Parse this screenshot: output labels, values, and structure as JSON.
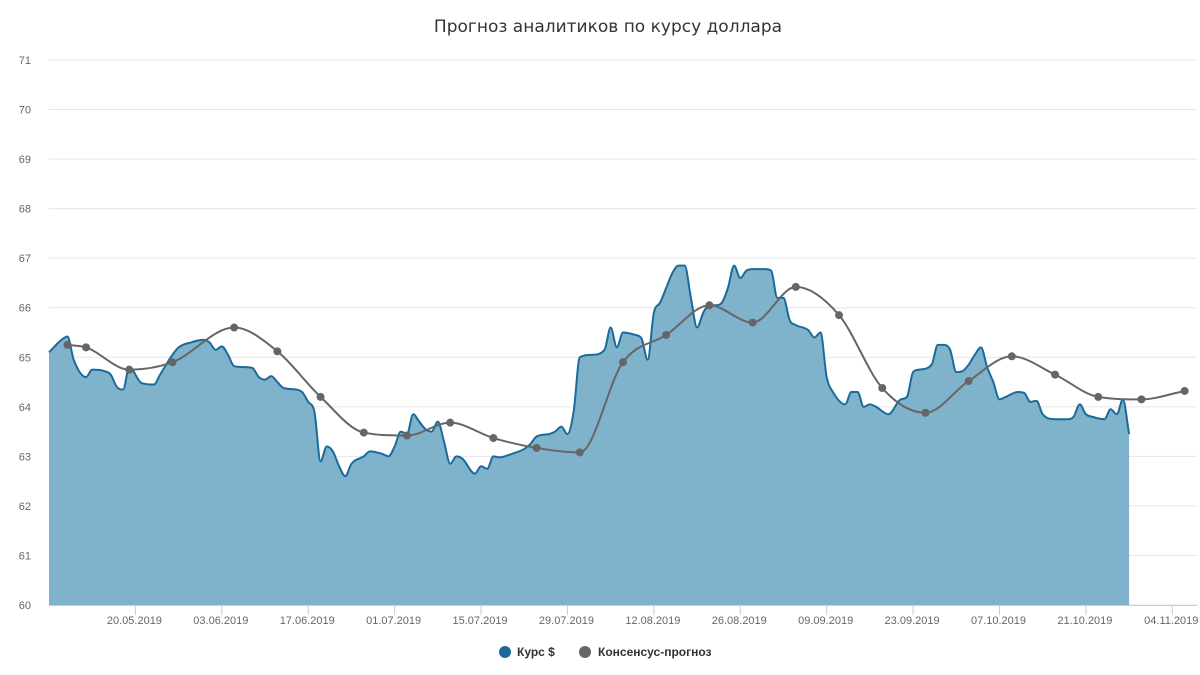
{
  "chart_data": {
    "type": "area",
    "title": "Прогноз аналитиков по курсу доллара",
    "xlabel": "",
    "ylabel": "",
    "ylim": [
      60,
      71
    ],
    "yticks": [
      60,
      61,
      62,
      63,
      64,
      65,
      66,
      67,
      68,
      69,
      70,
      71
    ],
    "xlim": [
      "2019-05-06",
      "2019-11-08"
    ],
    "xticks": [
      "20.05.2019",
      "03.06.2019",
      "17.06.2019",
      "01.07.2019",
      "15.07.2019",
      "29.07.2019",
      "12.08.2019",
      "26.08.2019",
      "09.09.2019",
      "23.09.2019",
      "07.10.2019",
      "21.10.2019",
      "04.11.2019"
    ],
    "grid": true,
    "legend_position": "bottom-center",
    "series": [
      {
        "name": "Курс $",
        "type": "area",
        "color": "#1a6b9a",
        "fill": "#7fb2cb",
        "points": [
          [
            "2019-05-06",
            65.1
          ],
          [
            "2019-05-08",
            65.35
          ],
          [
            "2019-05-09",
            65.42
          ],
          [
            "2019-05-10",
            64.95
          ],
          [
            "2019-05-12",
            64.6
          ],
          [
            "2019-05-13",
            64.75
          ],
          [
            "2019-05-15",
            64.72
          ],
          [
            "2019-05-16",
            64.65
          ],
          [
            "2019-05-17",
            64.4
          ],
          [
            "2019-05-18",
            64.35
          ],
          [
            "2019-05-19",
            64.8
          ],
          [
            "2019-05-21",
            64.48
          ],
          [
            "2019-05-23",
            64.45
          ],
          [
            "2019-05-24",
            64.65
          ],
          [
            "2019-05-26",
            65.05
          ],
          [
            "2019-05-27",
            65.2
          ],
          [
            "2019-05-29",
            65.3
          ],
          [
            "2019-05-31",
            65.35
          ],
          [
            "2019-06-01",
            65.3
          ],
          [
            "2019-06-02",
            65.15
          ],
          [
            "2019-06-03",
            65.22
          ],
          [
            "2019-06-04",
            65.05
          ],
          [
            "2019-06-05",
            64.82
          ],
          [
            "2019-06-07",
            64.8
          ],
          [
            "2019-06-08",
            64.78
          ],
          [
            "2019-06-09",
            64.6
          ],
          [
            "2019-06-10",
            64.55
          ],
          [
            "2019-06-11",
            64.62
          ],
          [
            "2019-06-12",
            64.5
          ],
          [
            "2019-06-13",
            64.38
          ],
          [
            "2019-06-15",
            64.35
          ],
          [
            "2019-06-16",
            64.3
          ],
          [
            "2019-06-17",
            64.1
          ],
          [
            "2019-06-18",
            63.9
          ],
          [
            "2019-06-19",
            62.9
          ],
          [
            "2019-06-20",
            63.2
          ],
          [
            "2019-06-21",
            63.1
          ],
          [
            "2019-06-22",
            62.8
          ],
          [
            "2019-06-23",
            62.6
          ],
          [
            "2019-06-24",
            62.85
          ],
          [
            "2019-06-26",
            63.0
          ],
          [
            "2019-06-27",
            63.1
          ],
          [
            "2019-06-29",
            63.05
          ],
          [
            "2019-06-30",
            63.0
          ],
          [
            "2019-07-01",
            63.2
          ],
          [
            "2019-07-02",
            63.5
          ],
          [
            "2019-07-03",
            63.45
          ],
          [
            "2019-07-04",
            63.85
          ],
          [
            "2019-07-05",
            63.7
          ],
          [
            "2019-07-06",
            63.55
          ],
          [
            "2019-07-07",
            63.5
          ],
          [
            "2019-07-08",
            63.7
          ],
          [
            "2019-07-09",
            63.3
          ],
          [
            "2019-07-10",
            62.85
          ],
          [
            "2019-07-11",
            63.0
          ],
          [
            "2019-07-12",
            62.95
          ],
          [
            "2019-07-14",
            62.65
          ],
          [
            "2019-07-15",
            62.8
          ],
          [
            "2019-07-16",
            62.75
          ],
          [
            "2019-07-17",
            63.0
          ],
          [
            "2019-07-18",
            62.98
          ],
          [
            "2019-07-20",
            63.05
          ],
          [
            "2019-07-22",
            63.15
          ],
          [
            "2019-07-23",
            63.25
          ],
          [
            "2019-07-24",
            63.4
          ],
          [
            "2019-07-26",
            63.45
          ],
          [
            "2019-07-27",
            63.5
          ],
          [
            "2019-07-28",
            63.6
          ],
          [
            "2019-07-29",
            63.45
          ],
          [
            "2019-07-30",
            63.9
          ],
          [
            "2019-07-31",
            65.0
          ],
          [
            "2019-08-02",
            65.05
          ],
          [
            "2019-08-04",
            65.15
          ],
          [
            "2019-08-05",
            65.6
          ],
          [
            "2019-08-06",
            65.2
          ],
          [
            "2019-08-07",
            65.5
          ],
          [
            "2019-08-09",
            65.45
          ],
          [
            "2019-08-10",
            65.38
          ],
          [
            "2019-08-11",
            64.95
          ],
          [
            "2019-08-12",
            65.9
          ],
          [
            "2019-08-13",
            66.1
          ],
          [
            "2019-08-14",
            66.4
          ],
          [
            "2019-08-15",
            66.7
          ],
          [
            "2019-08-16",
            66.85
          ],
          [
            "2019-08-17",
            66.85
          ],
          [
            "2019-08-18",
            66.2
          ],
          [
            "2019-08-19",
            65.6
          ],
          [
            "2019-08-20",
            65.9
          ],
          [
            "2019-08-21",
            66.05
          ],
          [
            "2019-08-22",
            66.05
          ],
          [
            "2019-08-23",
            66.1
          ],
          [
            "2019-08-24",
            66.4
          ],
          [
            "2019-08-25",
            66.85
          ],
          [
            "2019-08-26",
            66.6
          ],
          [
            "2019-08-27",
            66.75
          ],
          [
            "2019-08-28",
            66.78
          ],
          [
            "2019-08-30",
            66.78
          ],
          [
            "2019-08-31",
            66.75
          ],
          [
            "2019-09-01",
            66.2
          ],
          [
            "2019-09-02",
            66.2
          ],
          [
            "2019-09-03",
            65.75
          ],
          [
            "2019-09-04",
            65.65
          ],
          [
            "2019-09-06",
            65.55
          ],
          [
            "2019-09-07",
            65.4
          ],
          [
            "2019-09-08",
            65.5
          ],
          [
            "2019-09-09",
            64.6
          ],
          [
            "2019-09-10",
            64.3
          ],
          [
            "2019-09-12",
            64.05
          ],
          [
            "2019-09-13",
            64.3
          ],
          [
            "2019-09-14",
            64.3
          ],
          [
            "2019-09-15",
            64.0
          ],
          [
            "2019-09-16",
            64.05
          ],
          [
            "2019-09-17",
            64.0
          ],
          [
            "2019-09-19",
            63.85
          ],
          [
            "2019-09-21",
            64.15
          ],
          [
            "2019-09-22",
            64.2
          ],
          [
            "2019-09-23",
            64.7
          ],
          [
            "2019-09-24",
            64.75
          ],
          [
            "2019-09-26",
            64.85
          ],
          [
            "2019-09-27",
            65.25
          ],
          [
            "2019-09-28",
            65.25
          ],
          [
            "2019-09-29",
            65.15
          ],
          [
            "2019-09-30",
            64.7
          ],
          [
            "2019-10-01",
            64.72
          ],
          [
            "2019-10-02",
            64.85
          ],
          [
            "2019-10-03",
            65.05
          ],
          [
            "2019-10-04",
            65.2
          ],
          [
            "2019-10-05",
            64.8
          ],
          [
            "2019-10-06",
            64.5
          ],
          [
            "2019-10-07",
            64.15
          ],
          [
            "2019-10-08",
            64.2
          ],
          [
            "2019-10-10",
            64.3
          ],
          [
            "2019-10-11",
            64.28
          ],
          [
            "2019-10-12",
            64.1
          ],
          [
            "2019-10-13",
            64.12
          ],
          [
            "2019-10-14",
            63.85
          ],
          [
            "2019-10-16",
            63.75
          ],
          [
            "2019-10-18",
            63.75
          ],
          [
            "2019-10-19",
            63.8
          ],
          [
            "2019-10-20",
            64.05
          ],
          [
            "2019-10-21",
            63.85
          ],
          [
            "2019-10-22",
            63.8
          ],
          [
            "2019-10-24",
            63.75
          ],
          [
            "2019-10-25",
            63.95
          ],
          [
            "2019-10-26",
            63.85
          ],
          [
            "2019-10-27",
            64.15
          ],
          [
            "2019-10-28",
            63.45
          ]
        ]
      },
      {
        "name": "Консенсус-прогноз",
        "type": "line",
        "color": "#666666",
        "points": [
          [
            "2019-05-09",
            65.25
          ],
          [
            "2019-05-12",
            65.2
          ],
          [
            "2019-05-19",
            64.75
          ],
          [
            "2019-05-26",
            64.9
          ],
          [
            "2019-06-05",
            65.6
          ],
          [
            "2019-06-12",
            65.12
          ],
          [
            "2019-06-19",
            64.2
          ],
          [
            "2019-06-26",
            63.48
          ],
          [
            "2019-07-03",
            63.42
          ],
          [
            "2019-07-10",
            63.68
          ],
          [
            "2019-07-17",
            63.37
          ],
          [
            "2019-07-24",
            63.17
          ],
          [
            "2019-07-31",
            63.08
          ],
          [
            "2019-08-07",
            64.9
          ],
          [
            "2019-08-14",
            65.45
          ],
          [
            "2019-08-21",
            66.05
          ],
          [
            "2019-08-28",
            65.7
          ],
          [
            "2019-09-04",
            66.42
          ],
          [
            "2019-09-11",
            65.85
          ],
          [
            "2019-09-18",
            64.38
          ],
          [
            "2019-09-25",
            63.88
          ],
          [
            "2019-10-02",
            64.52
          ],
          [
            "2019-10-09",
            65.02
          ],
          [
            "2019-10-16",
            64.65
          ],
          [
            "2019-10-23",
            64.2
          ],
          [
            "2019-10-30",
            64.15
          ],
          [
            "2019-11-06",
            64.32
          ]
        ]
      }
    ]
  },
  "legend": {
    "items": [
      {
        "label": "Курс $",
        "color": "#1a6b9a"
      },
      {
        "label": "Консенсус-прогноз",
        "color": "#666666"
      }
    ]
  }
}
